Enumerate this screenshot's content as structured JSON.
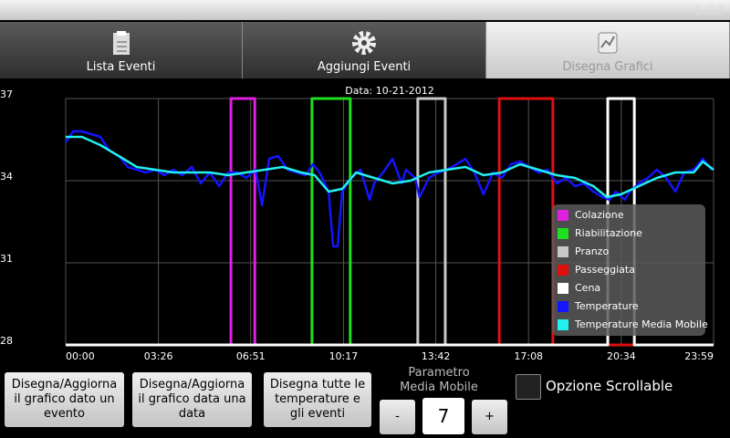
{
  "status_bar": {
    "time": "5:03"
  },
  "tabs": [
    "Lista Eventi",
    "Aggiungi Eventi",
    "Disegna Grafici"
  ],
  "chart_data": {
    "type": "line",
    "title": "Data: 10-21-2012",
    "xlim": [
      0,
      1439
    ],
    "xticks": [
      {
        "value": 0,
        "label": "00:00"
      },
      {
        "value": 206,
        "label": "03:26"
      },
      {
        "value": 411,
        "label": "06:51"
      },
      {
        "value": 617,
        "label": "10:17"
      },
      {
        "value": 822,
        "label": "13:42"
      },
      {
        "value": 1028,
        "label": "17:08"
      },
      {
        "value": 1234,
        "label": "20:34"
      },
      {
        "value": 1439,
        "label": "23:59"
      }
    ],
    "ylim": [
      28,
      37
    ],
    "yticks": [
      28,
      31,
      34,
      37
    ],
    "grid": true,
    "legend": "lower right",
    "series": [
      {
        "name": "Colazione",
        "color": "#e020e0",
        "x": [
          0,
          367,
          367,
          420,
          420,
          1439
        ],
        "values": [
          28,
          28,
          37,
          37,
          28,
          28
        ]
      },
      {
        "name": "Riabilitazione",
        "color": "#20e020",
        "x": [
          0,
          547,
          547,
          632,
          632,
          1439
        ],
        "values": [
          28,
          28,
          37,
          37,
          28,
          28
        ]
      },
      {
        "name": "Pranzo",
        "color": "#c8c8c8",
        "x": [
          0,
          782,
          782,
          843,
          843,
          1439
        ],
        "values": [
          28,
          28,
          37,
          37,
          28,
          28
        ]
      },
      {
        "name": "Passeggiata",
        "color": "#e01010",
        "x": [
          0,
          963,
          963,
          1082,
          1082,
          1439
        ],
        "values": [
          28,
          28,
          37,
          37,
          28,
          28
        ]
      },
      {
        "name": "Cena",
        "color": "#ffffff",
        "x": [
          0,
          1204,
          1204,
          1263,
          1263,
          1439
        ],
        "values": [
          28,
          28,
          37,
          37,
          28,
          28
        ]
      },
      {
        "name": "Temperature",
        "color": "#1414ff",
        "x": [
          0,
          16,
          36,
          57,
          77,
          97,
          118,
          138,
          158,
          178,
          199,
          219,
          239,
          259,
          280,
          300,
          320,
          341,
          361,
          381,
          401,
          422,
          436,
          452,
          472,
          493,
          513,
          533,
          549,
          564,
          584,
          594,
          604,
          614,
          634,
          655,
          675,
          685,
          705,
          726,
          746,
          756,
          776,
          786,
          807,
          827,
          847,
          868,
          888,
          908,
          928,
          949,
          969,
          989,
          1009,
          1030,
          1050,
          1070,
          1091,
          1111,
          1131,
          1151,
          1172,
          1192,
          1208,
          1222,
          1242,
          1253,
          1273,
          1293,
          1313,
          1334,
          1354,
          1374,
          1395,
          1415,
          1435
        ],
        "values": [
          35.4,
          35.8,
          35.8,
          35.7,
          35.6,
          35.1,
          34.9,
          34.5,
          34.4,
          34.3,
          34.4,
          34.2,
          34.4,
          34.2,
          34.5,
          33.9,
          34.3,
          33.8,
          34.3,
          34.3,
          34.1,
          34.4,
          33.1,
          34.8,
          34.9,
          34.4,
          34.3,
          34.2,
          34.6,
          34.3,
          33.6,
          31.6,
          31.6,
          33.6,
          34.1,
          34.4,
          33.3,
          33.9,
          34.3,
          34.8,
          33.9,
          34.4,
          34.1,
          33.4,
          34.1,
          34.3,
          34.4,
          34.6,
          34.8,
          34.3,
          33.5,
          34.3,
          34.1,
          34.6,
          34.7,
          34.5,
          34.3,
          34.4,
          33.9,
          34.1,
          33.8,
          33.9,
          33.6,
          33.4,
          33.3,
          33.6,
          33.3,
          33.6,
          33.9,
          34.1,
          34.4,
          34.1,
          33.6,
          34.3,
          34.4,
          34.8,
          34.4
        ]
      },
      {
        "name": "Temperature Media Mobile",
        "color": "#22f0f0",
        "x": [
          0,
          36,
          77,
          118,
          158,
          199,
          239,
          280,
          320,
          361,
          401,
          442,
          482,
          523,
          553,
          584,
          614,
          645,
          685,
          726,
          766,
          807,
          847,
          888,
          928,
          969,
          1009,
          1050,
          1091,
          1131,
          1172,
          1202,
          1233,
          1273,
          1313,
          1354,
          1395,
          1415,
          1439
        ],
        "values": [
          35.6,
          35.6,
          35.3,
          34.9,
          34.5,
          34.4,
          34.3,
          34.3,
          34.3,
          34.2,
          34.3,
          34.4,
          34.5,
          34.3,
          34.2,
          33.6,
          33.7,
          34.3,
          34.1,
          33.9,
          34.0,
          34.3,
          34.4,
          34.5,
          34.2,
          34.3,
          34.6,
          34.4,
          34.2,
          34.1,
          33.8,
          33.4,
          33.5,
          33.8,
          34.1,
          34.3,
          34.3,
          34.7,
          34.4
        ]
      }
    ]
  },
  "buttons": [
    "Disegna/Aggiorna il grafico dato un evento",
    "Disegna/Aggiorna il grafico data una data",
    "Disegna tutte le temperature e gli eventi"
  ],
  "moving_average": {
    "label": "Parametro Media Mobile",
    "minus": "-",
    "value": 7,
    "plus": "+"
  },
  "scrollable_option": {
    "label": "Opzione Scrollable"
  }
}
